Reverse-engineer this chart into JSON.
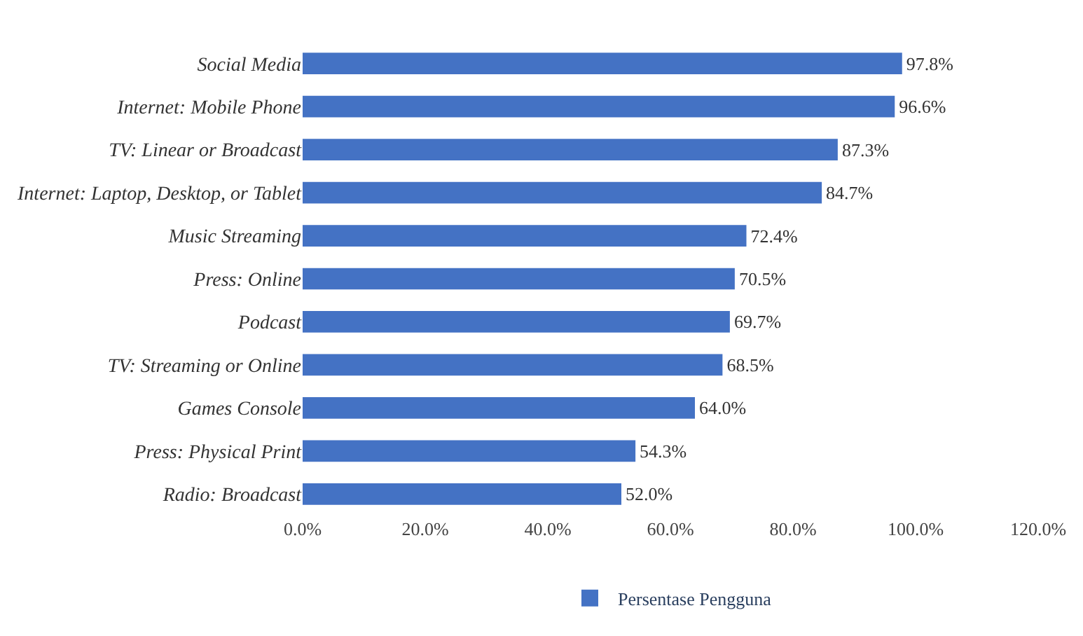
{
  "chart_data": {
    "type": "bar",
    "orientation": "horizontal",
    "categories": [
      "Social Media",
      "Internet: Mobile Phone",
      "TV: Linear or Broadcast",
      "Internet: Laptop, Desktop, or Tablet",
      "Music Streaming",
      "Press: Online",
      "Podcast",
      "TV: Streaming or Online",
      "Games Console",
      "Press: Physical Print",
      "Radio: Broadcast"
    ],
    "series": [
      {
        "name": "Persentase Pengguna",
        "color": "#4472c4",
        "values": [
          97.8,
          96.6,
          87.3,
          84.7,
          72.4,
          70.5,
          69.7,
          68.5,
          64.0,
          54.3,
          52.0
        ],
        "value_labels": [
          "97.8%",
          "96.6%",
          "87.3%",
          "84.7%",
          "72.4%",
          "70.5%",
          "69.7%",
          "68.5%",
          "64.0%",
          "54.3%",
          "52.0%"
        ]
      }
    ],
    "xlim": [
      0,
      120
    ],
    "xticks": [
      {
        "value": 0,
        "label": "0.0%"
      },
      {
        "value": 20,
        "label": "20.0%"
      },
      {
        "value": 40,
        "label": "40.0%"
      },
      {
        "value": 60,
        "label": "60.0%"
      },
      {
        "value": 80,
        "label": "80.0%"
      },
      {
        "value": 100,
        "label": "100.0%"
      },
      {
        "value": 120,
        "label": "120.0%"
      }
    ],
    "legend": "bottom"
  }
}
